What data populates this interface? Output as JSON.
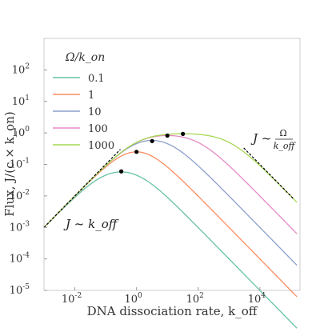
{
  "chart_data": {
    "type": "line",
    "xlabel": "DNA dissociation rate, k_off",
    "ylabel": "Flux, J/(c × k_on)",
    "xscale": "log",
    "yscale": "log",
    "xlim": [
      0.001,
      200000
    ],
    "ylim": [
      1e-05,
      1000
    ],
    "grid": false,
    "legend": {
      "title": "Ω/k_on",
      "placement": "top-left"
    },
    "x_ticks": [
      {
        "exp": -2,
        "label": "10^-2"
      },
      {
        "exp": 0,
        "label": "10^0"
      },
      {
        "exp": 2,
        "label": "10^2"
      },
      {
        "exp": 4,
        "label": "10^4"
      }
    ],
    "y_ticks": [
      {
        "exp": -5,
        "label": "10^-5"
      },
      {
        "exp": -4,
        "label": "10^-4"
      },
      {
        "exp": -3,
        "label": "10^-3"
      },
      {
        "exp": -2,
        "label": "10^-2"
      },
      {
        "exp": -1,
        "label": "10^-1"
      },
      {
        "exp": 0,
        "label": "10^0"
      },
      {
        "exp": 1,
        "label": "10^1"
      },
      {
        "exp": 2,
        "label": "10^2"
      }
    ],
    "series": [
      {
        "name": "0.1",
        "omega": 0.1,
        "color": "#66c2a5",
        "peak": {
          "x": 0.32,
          "y": 0.06
        }
      },
      {
        "name": "1",
        "omega": 1,
        "color": "#fc8d62",
        "peak": {
          "x": 1.0,
          "y": 0.25
        }
      },
      {
        "name": "10",
        "omega": 10,
        "color": "#8da0cb",
        "peak": {
          "x": 3.2,
          "y": 0.55
        }
      },
      {
        "name": "100",
        "omega": 100,
        "color": "#e78ac3",
        "peak": {
          "x": 10,
          "y": 0.82
        }
      },
      {
        "name": "1000",
        "omega": 1000,
        "color": "#a6d854",
        "peak": {
          "x": 32,
          "y": 0.93
        }
      }
    ],
    "annotations": {
      "left": "J ~ k_off",
      "right_lhs": "J ~",
      "right_num": "Ω",
      "right_den": "k_off"
    }
  }
}
